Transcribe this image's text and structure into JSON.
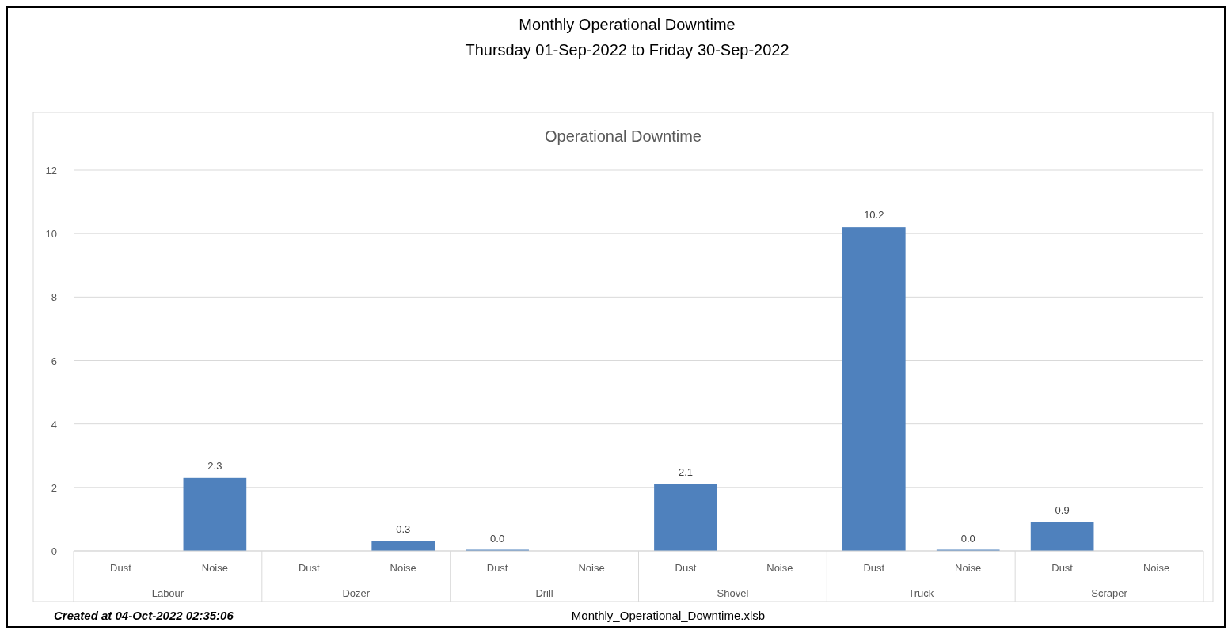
{
  "chart_data": {
    "type": "bar",
    "title": "Monthly Operational Downtime",
    "subtitle": "Thursday 01-Sep-2022 to Friday 30-Sep-2022",
    "categories": [
      "Dust",
      "Noise",
      "Dust",
      "Noise",
      "Dust",
      "Noise",
      "Dust",
      "Noise",
      "Dust",
      "Noise",
      "Dust",
      "Noise"
    ],
    "values": [
      null,
      2.3,
      null,
      0.3,
      0,
      null,
      2.1,
      null,
      10.2,
      0,
      0.9,
      null
    ],
    "value_labels": [
      null,
      "2.3",
      null,
      "0.3",
      "0.0",
      null,
      "2.1",
      null,
      "10.2",
      "0.0",
      "0.9",
      null
    ],
    "color": "#4f81bd",
    "ylim": [
      0,
      12
    ],
    "yticks": [
      0,
      2,
      4,
      6,
      8,
      10,
      12
    ],
    "grid": "y",
    "annotations": [
      "Operational Downtime",
      "Labour",
      "Dozer",
      "Drill",
      "Shovel",
      "Truck",
      "Scraper",
      "Created at 04-Oct-2022 02:35:06",
      "Monthly_Operational_Downtime.xlsb"
    ]
  }
}
